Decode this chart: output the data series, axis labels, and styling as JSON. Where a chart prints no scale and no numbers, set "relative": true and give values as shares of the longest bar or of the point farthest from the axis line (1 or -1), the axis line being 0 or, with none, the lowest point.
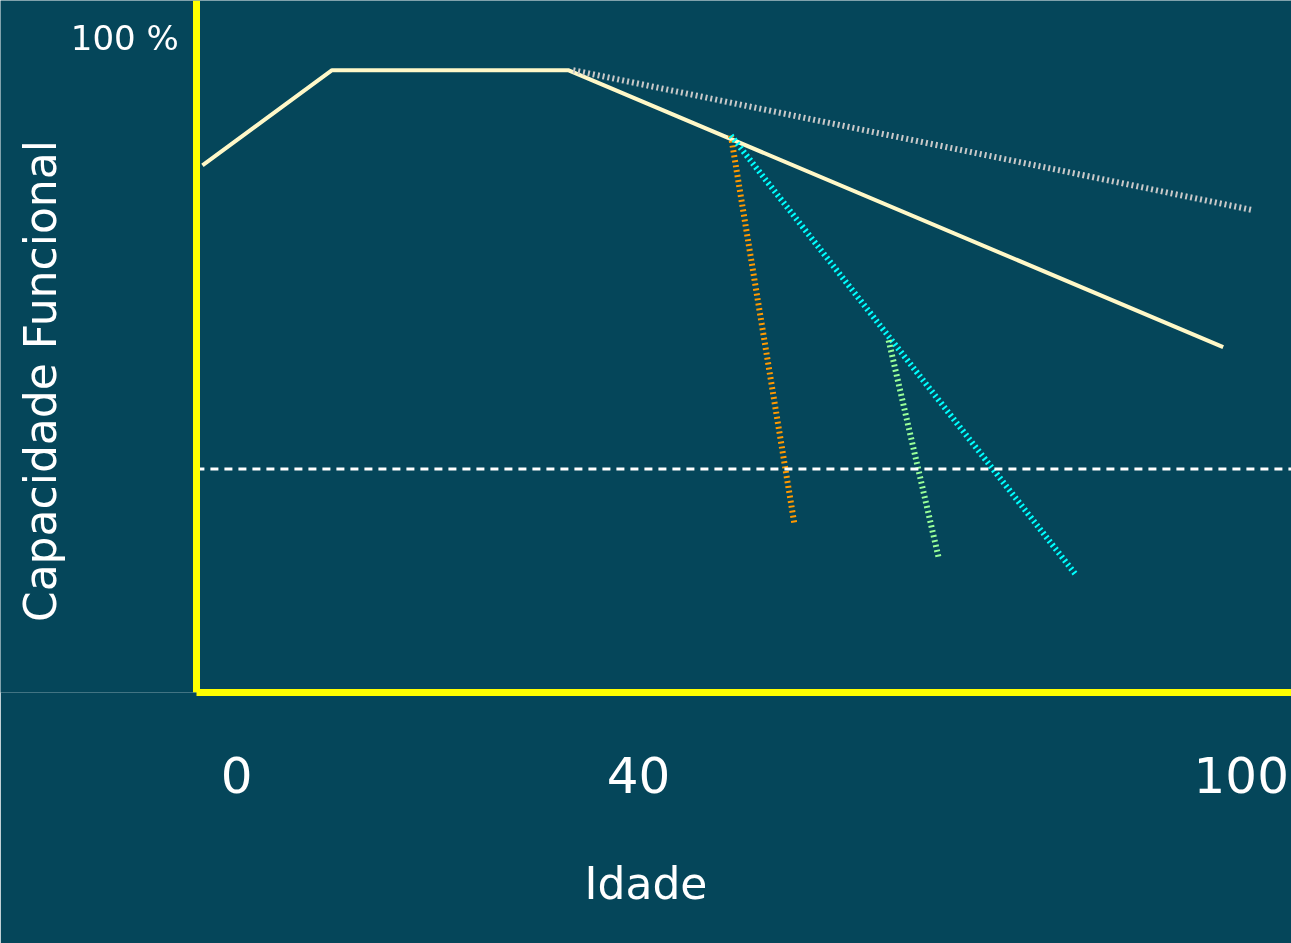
{
  "chart_data": {
    "type": "line",
    "relative": true,
    "xlabel": "Idade",
    "ylabel": "Capacidade Funcional",
    "annotations": [
      "100 %"
    ],
    "xlim": [
      -4,
      105
    ],
    "xticks": [
      0,
      40,
      100
    ],
    "grid": false,
    "marker": "none",
    "tick_labels": "x",
    "series": [
      {
        "color": "#fff8c8",
        "line_style": "solid",
        "x": [
          -3.4,
          9.5,
          33,
          98.2
        ],
        "values": [
          0.847,
          1,
          1,
          0.555
        ]
      },
      {
        "color": "#c8c8c8",
        "line_style": "dotted",
        "x": [
          33.5,
          101.2
        ],
        "values": [
          1,
          0.775
        ]
      },
      {
        "color": "#ff9900",
        "line_style": "dotted",
        "x": [
          49.2,
          55.5
        ],
        "values": [
          0.895,
          0.273
        ]
      },
      {
        "color": "#00ffff",
        "line_style": "dotted",
        "x": [
          49.2,
          83.6
        ],
        "values": [
          0.895,
          0.188
        ]
      },
      {
        "color": "#99ff99",
        "line_style": "dotted",
        "x": [
          64.9,
          69.9
        ],
        "values": [
          0.566,
          0.215
        ]
      }
    ],
    "ref_lines": [
      {
        "axis": "y",
        "value": 0.359,
        "color": "#ffffff",
        "line_style": "dashed"
      }
    ]
  }
}
